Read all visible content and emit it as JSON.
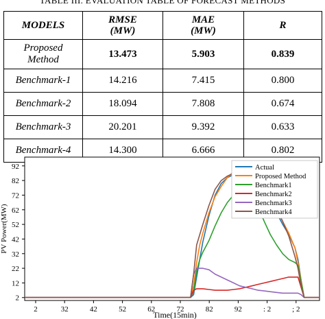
{
  "table": {
    "caption": "TABLE III. EVALUATION TABLE OF FORECAST METHODS",
    "headers": [
      {
        "line1": "MODELS",
        "line2": ""
      },
      {
        "line1": "RMSE",
        "line2": "(MW)"
      },
      {
        "line1": "MAE",
        "line2": "(MW)"
      },
      {
        "line1": "R",
        "line2": ""
      }
    ],
    "rows": [
      {
        "model_line1": "Proposed",
        "model_line2": "Method",
        "rmse": "13.473",
        "mae": "5.903",
        "r": "0.839"
      },
      {
        "model_line1": "Benchmark-1",
        "model_line2": "",
        "rmse": "14.216",
        "mae": "7.415",
        "r": "0.800"
      },
      {
        "model_line1": "Benchmark-2",
        "model_line2": "",
        "rmse": "18.094",
        "mae": "7.808",
        "r": "0.674"
      },
      {
        "model_line1": "Benchmark-3",
        "model_line2": "",
        "rmse": "20.201",
        "mae": "9.392",
        "r": "0.633"
      },
      {
        "model_line1": "Benchmark-4",
        "model_line2": "",
        "rmse": "14.300",
        "mae": "6.666",
        "r": "0.802"
      }
    ]
  },
  "chart_data": {
    "type": "line",
    "title": "",
    "xlabel": "Time(15min)",
    "ylabel": "PV Power(MW)",
    "x_tick_labels": [
      "2",
      "32",
      "42",
      "52",
      "62",
      "72",
      "82",
      "92",
      ": 2",
      "; 2"
    ],
    "y_tick_labels": [
      "2",
      "12",
      "22",
      "32",
      "42",
      "52",
      "62",
      "72",
      "82",
      "92"
    ],
    "xlim": [
      0,
      96
    ],
    "ylim": [
      0,
      98
    ],
    "y_ticks": [
      2,
      12,
      22,
      32,
      42,
      52,
      62,
      72,
      82,
      92
    ],
    "legend_position": "top-right",
    "series": [
      {
        "name": "Actual",
        "color": "#1f77b4",
        "points": [
          [
            0,
            2
          ],
          [
            54,
            2
          ],
          [
            55,
            4
          ],
          [
            56,
            16
          ],
          [
            57,
            28
          ],
          [
            58,
            40
          ],
          [
            60,
            58
          ],
          [
            62,
            72
          ],
          [
            64,
            80
          ],
          [
            66,
            84
          ],
          [
            68,
            86
          ],
          [
            70,
            87
          ],
          [
            72,
            87.5
          ],
          [
            74,
            86
          ],
          [
            76,
            83
          ],
          [
            78,
            77
          ],
          [
            80,
            69
          ],
          [
            82,
            60
          ],
          [
            84,
            52
          ],
          [
            86,
            45
          ],
          [
            88,
            36
          ],
          [
            89,
            28
          ],
          [
            90,
            14
          ],
          [
            91,
            2
          ],
          [
            96,
            2
          ]
        ]
      },
      {
        "name": "Proposed Method",
        "color": "#ff7f0e",
        "points": [
          [
            0,
            2
          ],
          [
            54,
            2
          ],
          [
            55,
            10
          ],
          [
            56,
            26
          ],
          [
            57,
            38
          ],
          [
            58,
            46
          ],
          [
            60,
            60
          ],
          [
            62,
            71
          ],
          [
            64,
            78
          ],
          [
            66,
            84
          ],
          [
            68,
            88
          ],
          [
            70,
            91
          ],
          [
            72,
            91
          ],
          [
            74,
            88
          ],
          [
            76,
            83
          ],
          [
            78,
            77
          ],
          [
            80,
            70
          ],
          [
            82,
            62
          ],
          [
            84,
            54
          ],
          [
            86,
            46
          ],
          [
            88,
            36
          ],
          [
            89,
            26
          ],
          [
            90,
            14
          ],
          [
            91,
            2
          ],
          [
            96,
            2
          ]
        ]
      },
      {
        "name": "Benchmark1",
        "color": "#2ca02c",
        "points": [
          [
            0,
            2
          ],
          [
            54,
            2
          ],
          [
            55,
            6
          ],
          [
            56,
            20
          ],
          [
            57,
            28
          ],
          [
            58,
            33
          ],
          [
            60,
            41
          ],
          [
            62,
            51
          ],
          [
            64,
            60
          ],
          [
            66,
            67
          ],
          [
            68,
            72
          ],
          [
            70,
            76
          ],
          [
            72,
            75
          ],
          [
            74,
            71
          ],
          [
            76,
            64
          ],
          [
            78,
            54
          ],
          [
            80,
            45
          ],
          [
            82,
            38
          ],
          [
            84,
            32
          ],
          [
            86,
            28
          ],
          [
            88,
            26
          ],
          [
            89,
            24
          ],
          [
            90,
            13
          ],
          [
            91,
            2
          ],
          [
            96,
            2
          ]
        ]
      },
      {
        "name": "Benchmark2",
        "color": "#d62728",
        "points": [
          [
            0,
            2
          ],
          [
            54,
            2
          ],
          [
            55,
            7
          ],
          [
            56,
            8
          ],
          [
            58,
            8
          ],
          [
            60,
            7.5
          ],
          [
            62,
            7
          ],
          [
            64,
            7
          ],
          [
            66,
            7
          ],
          [
            68,
            7.5
          ],
          [
            70,
            8
          ],
          [
            72,
            9
          ],
          [
            74,
            10
          ],
          [
            76,
            11
          ],
          [
            78,
            12
          ],
          [
            80,
            13
          ],
          [
            82,
            14
          ],
          [
            84,
            15
          ],
          [
            86,
            16
          ],
          [
            88,
            16
          ],
          [
            89,
            16
          ],
          [
            90,
            9
          ],
          [
            91,
            2
          ],
          [
            96,
            2
          ]
        ]
      },
      {
        "name": "Benchmark3",
        "color": "#9467bd",
        "points": [
          [
            0,
            2
          ],
          [
            54,
            2
          ],
          [
            55,
            18
          ],
          [
            56,
            22
          ],
          [
            58,
            22
          ],
          [
            60,
            21
          ],
          [
            62,
            18
          ],
          [
            64,
            16
          ],
          [
            66,
            14
          ],
          [
            68,
            12
          ],
          [
            70,
            10
          ],
          [
            72,
            9
          ],
          [
            74,
            8
          ],
          [
            76,
            7
          ],
          [
            78,
            6.5
          ],
          [
            80,
            6
          ],
          [
            82,
            5.5
          ],
          [
            84,
            5
          ],
          [
            86,
            5
          ],
          [
            88,
            5
          ],
          [
            89,
            5
          ],
          [
            90,
            4
          ],
          [
            91,
            2
          ],
          [
            96,
            2
          ]
        ]
      },
      {
        "name": "Benchmark4",
        "color": "#8c564b",
        "points": [
          [
            0,
            2
          ],
          [
            54,
            2
          ],
          [
            55,
            18
          ],
          [
            56,
            38
          ],
          [
            58,
            52
          ],
          [
            60,
            65
          ],
          [
            62,
            76
          ],
          [
            64,
            82
          ],
          [
            66,
            85
          ],
          [
            68,
            87
          ],
          [
            70,
            88.5
          ],
          [
            72,
            89
          ],
          [
            74,
            88
          ],
          [
            76,
            85
          ],
          [
            78,
            79
          ],
          [
            80,
            72
          ],
          [
            82,
            63
          ],
          [
            84,
            54
          ],
          [
            86,
            44
          ],
          [
            88,
            30
          ],
          [
            89,
            22
          ],
          [
            90,
            10
          ],
          [
            91,
            2
          ],
          [
            96,
            2
          ]
        ]
      }
    ]
  }
}
